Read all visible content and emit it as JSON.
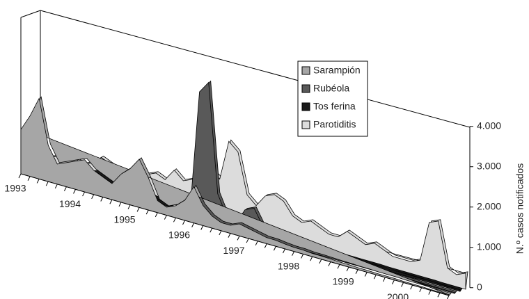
{
  "chart_data": {
    "type": "area3d",
    "y_label": "N.º casos notificados",
    "categories": [
      "1993",
      null,
      null,
      null,
      null,
      null,
      "1994",
      null,
      null,
      null,
      null,
      null,
      "1995",
      null,
      null,
      null,
      null,
      null,
      "1996",
      null,
      null,
      null,
      null,
      null,
      "1997",
      null,
      null,
      null,
      null,
      null,
      "1998",
      null,
      null,
      null,
      null,
      null,
      "1999",
      null,
      null,
      null,
      null,
      null,
      "2000",
      null,
      null,
      null,
      null,
      null
    ],
    "series": [
      {
        "name": "Sarampión",
        "color": "#a6a6a6",
        "values": [
          1100,
          1500,
          2000,
          900,
          500,
          600,
          700,
          800,
          600,
          500,
          400,
          700,
          900,
          1200,
          800,
          300,
          200,
          300,
          500,
          900,
          500,
          300,
          200,
          200,
          300,
          250,
          200,
          150,
          150,
          120,
          100,
          100,
          80,
          80,
          70,
          60,
          60,
          50,
          50,
          40,
          40,
          40,
          30,
          30,
          30,
          20,
          20,
          20
        ]
      },
      {
        "name": "Rubéola",
        "color": "#595959",
        "values": [
          100,
          100,
          150,
          200,
          200,
          150,
          200,
          300,
          200,
          150,
          100,
          150,
          150,
          200,
          150,
          100,
          100,
          150,
          300,
          3200,
          3500,
          800,
          300,
          200,
          600,
          700,
          300,
          150,
          100,
          100,
          80,
          80,
          60,
          60,
          50,
          50,
          40,
          40,
          40,
          30,
          30,
          30,
          30,
          20,
          20,
          20,
          20,
          20
        ]
      },
      {
        "name": "Tos ferina",
        "color": "#1a1a1a",
        "values": [
          150,
          150,
          200,
          300,
          250,
          200,
          300,
          400,
          300,
          200,
          150,
          200,
          200,
          200,
          150,
          100,
          100,
          100,
          150,
          150,
          150,
          120,
          100,
          100,
          100,
          100,
          100,
          80,
          80,
          80,
          80,
          80,
          80,
          60,
          60,
          60,
          60,
          60,
          60,
          50,
          50,
          50,
          50,
          50,
          50,
          40,
          40,
          40
        ]
      },
      {
        "name": "Parotiditis",
        "color": "#dcdcdc",
        "values": [
          200,
          300,
          400,
          600,
          500,
          400,
          500,
          700,
          600,
          500,
          400,
          500,
          600,
          700,
          600,
          900,
          700,
          800,
          1500,
          1200,
          1000,
          2000,
          1800,
          800,
          600,
          900,
          1000,
          900,
          600,
          500,
          600,
          500,
          400,
          400,
          600,
          500,
          400,
          500,
          400,
          300,
          300,
          300,
          400,
          1400,
          1500,
          400,
          300,
          400
        ]
      }
    ],
    "ylim": [
      0,
      4000
    ],
    "yticks": [
      0,
      {
        "value": 1000,
        "label": "1.000"
      },
      {
        "value": 2000,
        "label": "2.000"
      },
      {
        "value": 3000,
        "label": "3.000"
      },
      {
        "value": 4000,
        "label": "4.000"
      }
    ]
  }
}
